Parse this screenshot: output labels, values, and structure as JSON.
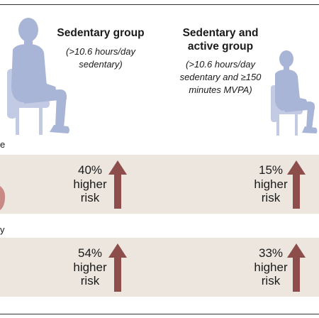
{
  "groups": [
    {
      "title": "Sedentary group",
      "description": "(>10.6 hours/day sedentary)"
    },
    {
      "title": "Sedentary and active group",
      "description": "(>10.6 hours/day sedentary and ≥150 minutes MVPA)"
    }
  ],
  "row_label_fragments": [
    "e",
    "y"
  ],
  "outcomes": [
    {
      "results": [
        {
          "percent": "40%",
          "text": "higher risk"
        },
        {
          "percent": "15%",
          "text": "higher risk"
        }
      ]
    },
    {
      "results": [
        {
          "percent": "54%",
          "text": "higher risk"
        },
        {
          "percent": "33%",
          "text": "higher risk"
        }
      ]
    }
  ],
  "colors": {
    "figure": "#a9b5d6",
    "chair": "#c3cbe4",
    "arrow": "#8c4d4b",
    "band": "#ece6df",
    "accent_blob": "#c98a85"
  }
}
